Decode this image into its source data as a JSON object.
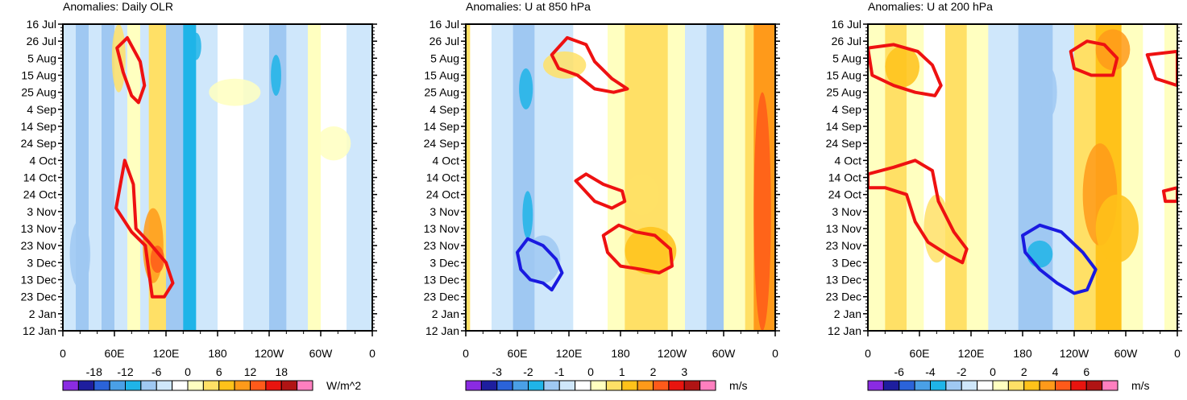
{
  "palette": [
    "#8a2be2",
    "#1e1e9e",
    "#2b63d9",
    "#4aa0e6",
    "#1fb4e8",
    "#9fc8f2",
    "#cfe7fb",
    "#ffffff",
    "#ffffc0",
    "#ffe066",
    "#ffc21a",
    "#ff9a1a",
    "#ff5a1a",
    "#e8140f",
    "#b01414",
    "#ff7fbf"
  ],
  "contour_colors": {
    "positive": "#ee1111",
    "negative": "#1a1ae0"
  },
  "chart_data": [
    {
      "type": "heatmap",
      "title": "Anomalies: Daily OLR",
      "units": "W/m^2",
      "colorbar_labels": [
        "-18",
        "-12",
        "-6",
        "0",
        "6",
        "12",
        "18"
      ],
      "x_ticks": [
        "0",
        "60E",
        "120E",
        "180",
        "120W",
        "60W",
        "0"
      ],
      "y_ticks": [
        "16 Jul",
        "26 Jul",
        "5 Aug",
        "15 Aug",
        "25 Aug",
        "4 Sep",
        "14 Sep",
        "24 Sep",
        "4 Oct",
        "14 Oct",
        "24 Oct",
        "3 Nov",
        "13 Nov",
        "23 Nov",
        "3 Dec",
        "13 Dec",
        "23 Dec",
        "2 Jan",
        "12 Jan"
      ],
      "xlim": [
        0,
        360
      ],
      "bands": [
        {
          "lon0": 0,
          "lon1": 15,
          "level": 6
        },
        {
          "lon0": 15,
          "lon1": 30,
          "level": 5
        },
        {
          "lon0": 30,
          "lon1": 45,
          "level": 6
        },
        {
          "lon0": 45,
          "lon1": 60,
          "level": 5
        },
        {
          "lon0": 60,
          "lon1": 75,
          "level": 6
        },
        {
          "lon0": 75,
          "lon1": 90,
          "level": 8
        },
        {
          "lon0": 90,
          "lon1": 100,
          "level": 6
        },
        {
          "lon0": 100,
          "lon1": 120,
          "level": 9
        },
        {
          "lon0": 120,
          "lon1": 140,
          "level": 5
        },
        {
          "lon0": 140,
          "lon1": 155,
          "level": 4
        },
        {
          "lon0": 155,
          "lon1": 180,
          "level": 6
        },
        {
          "lon0": 180,
          "lon1": 210,
          "level": 7
        },
        {
          "lon0": 210,
          "lon1": 240,
          "level": 6
        },
        {
          "lon0": 240,
          "lon1": 260,
          "level": 5
        },
        {
          "lon0": 260,
          "lon1": 285,
          "level": 6
        },
        {
          "lon0": 285,
          "lon1": 300,
          "level": 8
        },
        {
          "lon0": 300,
          "lon1": 330,
          "level": 7
        },
        {
          "lon0": 330,
          "lon1": 360,
          "level": 6
        }
      ],
      "patches": [
        {
          "lon": 105,
          "day": 130,
          "rlon": 12,
          "rday": 22,
          "level": 11
        },
        {
          "lon": 110,
          "day": 138,
          "rlon": 8,
          "rday": 8,
          "level": 12
        },
        {
          "lon": 65,
          "day": 20,
          "rlon": 8,
          "rday": 20,
          "level": 9
        },
        {
          "lon": 155,
          "day": 13,
          "rlon": 6,
          "rday": 8,
          "level": 4
        },
        {
          "lon": 248,
          "day": 30,
          "rlon": 6,
          "rday": 12,
          "level": 4
        },
        {
          "lon": 20,
          "day": 135,
          "rlon": 12,
          "rday": 20,
          "level": 5
        },
        {
          "lon": 200,
          "day": 40,
          "rlon": 30,
          "rday": 8,
          "level": 8
        },
        {
          "lon": 315,
          "day": 70,
          "rlon": 20,
          "rday": 10,
          "level": 8
        }
      ],
      "contours": [
        {
          "sign": "positive",
          "points": [
            [
              63,
              14
            ],
            [
              75,
              8
            ],
            [
              90,
              22
            ],
            [
              95,
              36
            ],
            [
              88,
              46
            ],
            [
              80,
              42
            ],
            [
              70,
              28
            ]
          ]
        },
        {
          "sign": "positive",
          "points": [
            [
              62,
              108
            ],
            [
              72,
              80
            ],
            [
              82,
              94
            ],
            [
              85,
              120
            ],
            [
              100,
              128
            ],
            [
              120,
              140
            ],
            [
              128,
              152
            ],
            [
              118,
              160
            ],
            [
              104,
              160
            ],
            [
              96,
              130
            ],
            [
              80,
              122
            ]
          ]
        }
      ]
    },
    {
      "type": "heatmap",
      "title": "Anomalies: U at 850 hPa",
      "units": "m/s",
      "colorbar_labels": [
        "-3",
        "-2",
        "-1",
        "0",
        "1",
        "2",
        "3"
      ],
      "x_ticks": [
        "0",
        "60E",
        "120E",
        "180",
        "120W",
        "60W",
        "0"
      ],
      "y_ticks": [
        "16 Jul",
        "26 Jul",
        "5 Aug",
        "15 Aug",
        "25 Aug",
        "4 Sep",
        "14 Sep",
        "24 Sep",
        "4 Oct",
        "14 Oct",
        "24 Oct",
        "3 Nov",
        "13 Nov",
        "23 Nov",
        "3 Dec",
        "13 Dec",
        "23 Dec",
        "2 Jan",
        "12 Jan"
      ],
      "xlim": [
        0,
        360
      ],
      "bands": [
        {
          "lon0": 0,
          "lon1": 5,
          "level": 9
        },
        {
          "lon0": 5,
          "lon1": 30,
          "level": 7
        },
        {
          "lon0": 30,
          "lon1": 55,
          "level": 6
        },
        {
          "lon0": 55,
          "lon1": 80,
          "level": 5
        },
        {
          "lon0": 80,
          "lon1": 100,
          "level": 6
        },
        {
          "lon0": 100,
          "lon1": 125,
          "level": 6
        },
        {
          "lon0": 125,
          "lon1": 165,
          "level": 7
        },
        {
          "lon0": 165,
          "lon1": 185,
          "level": 8
        },
        {
          "lon0": 185,
          "lon1": 235,
          "level": 9
        },
        {
          "lon0": 235,
          "lon1": 255,
          "level": 8
        },
        {
          "lon0": 255,
          "lon1": 280,
          "level": 6
        },
        {
          "lon0": 280,
          "lon1": 300,
          "level": 5
        },
        {
          "lon0": 300,
          "lon1": 325,
          "level": 8
        },
        {
          "lon0": 325,
          "lon1": 335,
          "level": 9
        },
        {
          "lon0": 335,
          "lon1": 360,
          "level": 11
        }
      ],
      "patches": [
        {
          "lon": 215,
          "day": 133,
          "rlon": 30,
          "rday": 14,
          "level": 10
        },
        {
          "lon": 205,
          "day": 100,
          "rlon": 20,
          "rday": 12,
          "level": 9
        },
        {
          "lon": 115,
          "day": 24,
          "rlon": 25,
          "rday": 8,
          "level": 9
        },
        {
          "lon": 70,
          "day": 38,
          "rlon": 8,
          "rday": 12,
          "level": 4
        },
        {
          "lon": 72,
          "day": 112,
          "rlon": 6,
          "rday": 14,
          "level": 4
        },
        {
          "lon": 90,
          "day": 138,
          "rlon": 20,
          "rday": 14,
          "level": 5
        },
        {
          "lon": 345,
          "day": 110,
          "rlon": 10,
          "rday": 70,
          "level": 12
        }
      ],
      "contours": [
        {
          "sign": "positive",
          "points": [
            [
              100,
              18
            ],
            [
              118,
              8
            ],
            [
              140,
              12
            ],
            [
              150,
              22
            ],
            [
              170,
              32
            ],
            [
              188,
              38
            ],
            [
              172,
              40
            ],
            [
              150,
              38
            ],
            [
              130,
              30
            ],
            [
              108,
              26
            ]
          ]
        },
        {
          "sign": "positive",
          "points": [
            [
              128,
              92
            ],
            [
              140,
              88
            ],
            [
              160,
              94
            ],
            [
              182,
              98
            ],
            [
              185,
              104
            ],
            [
              170,
              108
            ],
            [
              150,
              104
            ]
          ]
        },
        {
          "sign": "positive",
          "points": [
            [
              160,
              124
            ],
            [
              178,
              118
            ],
            [
              198,
              122
            ],
            [
              220,
              124
            ],
            [
              238,
              132
            ],
            [
              240,
              142
            ],
            [
              225,
              146
            ],
            [
              205,
              144
            ],
            [
              180,
              142
            ],
            [
              165,
              134
            ]
          ]
        },
        {
          "sign": "negative",
          "points": [
            [
              60,
              134
            ],
            [
              72,
              126
            ],
            [
              90,
              130
            ],
            [
              105,
              138
            ],
            [
              112,
              146
            ],
            [
              100,
              156
            ],
            [
              90,
              152
            ],
            [
              75,
              150
            ],
            [
              64,
              144
            ]
          ]
        }
      ]
    },
    {
      "type": "heatmap",
      "title": "Anomalies: U at 200 hPa",
      "units": "m/s",
      "colorbar_labels": [
        "-6",
        "-4",
        "-2",
        "0",
        "2",
        "4",
        "6"
      ],
      "x_ticks": [
        "0",
        "60E",
        "120E",
        "180",
        "120W",
        "60W",
        "0"
      ],
      "y_ticks": [
        "16 Jul",
        "26 Jul",
        "5 Aug",
        "15 Aug",
        "25 Aug",
        "4 Sep",
        "14 Sep",
        "24 Sep",
        "4 Oct",
        "14 Oct",
        "24 Oct",
        "3 Nov",
        "13 Nov",
        "23 Nov",
        "3 Dec",
        "13 Dec",
        "23 Dec",
        "2 Jan",
        "12 Jan"
      ],
      "xlim": [
        0,
        360
      ],
      "bands": [
        {
          "lon0": 0,
          "lon1": 20,
          "level": 8
        },
        {
          "lon0": 20,
          "lon1": 45,
          "level": 9
        },
        {
          "lon0": 45,
          "lon1": 65,
          "level": 8
        },
        {
          "lon0": 65,
          "lon1": 90,
          "level": 7
        },
        {
          "lon0": 90,
          "lon1": 115,
          "level": 9
        },
        {
          "lon0": 115,
          "lon1": 140,
          "level": 8
        },
        {
          "lon0": 140,
          "lon1": 175,
          "level": 6
        },
        {
          "lon0": 175,
          "lon1": 215,
          "level": 5
        },
        {
          "lon0": 215,
          "lon1": 240,
          "level": 6
        },
        {
          "lon0": 240,
          "lon1": 265,
          "level": 9
        },
        {
          "lon0": 265,
          "lon1": 295,
          "level": 10
        },
        {
          "lon0": 295,
          "lon1": 320,
          "level": 8
        },
        {
          "lon0": 320,
          "lon1": 345,
          "level": 7
        },
        {
          "lon0": 345,
          "lon1": 360,
          "level": 8
        }
      ],
      "patches": [
        {
          "lon": 270,
          "day": 100,
          "rlon": 20,
          "rday": 30,
          "level": 11
        },
        {
          "lon": 285,
          "day": 15,
          "rlon": 20,
          "rday": 12,
          "level": 11
        },
        {
          "lon": 290,
          "day": 120,
          "rlon": 25,
          "rday": 20,
          "level": 10
        },
        {
          "lon": 40,
          "day": 25,
          "rlon": 20,
          "rday": 12,
          "level": 10
        },
        {
          "lon": 200,
          "day": 135,
          "rlon": 15,
          "rday": 8,
          "level": 4
        },
        {
          "lon": 210,
          "day": 40,
          "rlon": 10,
          "rday": 15,
          "level": 5
        },
        {
          "lon": 80,
          "day": 120,
          "rlon": 15,
          "rday": 20,
          "level": 9
        }
      ],
      "contours": [
        {
          "sign": "positive",
          "points": [
            [
              0,
              14
            ],
            [
              30,
              12
            ],
            [
              58,
              16
            ],
            [
              75,
              24
            ],
            [
              85,
              36
            ],
            [
              78,
              42
            ],
            [
              55,
              40
            ],
            [
              30,
              36
            ],
            [
              5,
              30
            ]
          ]
        },
        {
          "sign": "positive",
          "points": [
            [
              0,
              88
            ],
            [
              30,
              84
            ],
            [
              55,
              80
            ],
            [
              75,
              86
            ],
            [
              82,
              104
            ],
            [
              100,
              122
            ],
            [
              115,
              132
            ],
            [
              110,
              140
            ],
            [
              95,
              136
            ],
            [
              70,
              128
            ],
            [
              55,
              116
            ],
            [
              45,
              100
            ],
            [
              20,
              96
            ],
            [
              0,
              96
            ]
          ]
        },
        {
          "sign": "positive",
          "points": [
            [
              236,
              16
            ],
            [
              255,
              10
            ],
            [
              275,
              12
            ],
            [
              290,
              20
            ],
            [
              285,
              30
            ],
            [
              260,
              30
            ],
            [
              240,
              26
            ]
          ]
        },
        {
          "sign": "positive",
          "points": [
            [
              325,
              18
            ],
            [
              360,
              16
            ],
            [
              360,
              36
            ],
            [
              335,
              32
            ]
          ]
        },
        {
          "sign": "positive",
          "points": [
            [
              344,
              98
            ],
            [
              360,
              96
            ],
            [
              360,
              104
            ],
            [
              346,
              104
            ]
          ]
        },
        {
          "sign": "negative",
          "points": [
            [
              180,
              124
            ],
            [
              200,
              118
            ],
            [
              225,
              122
            ],
            [
              250,
              134
            ],
            [
              265,
              144
            ],
            [
              255,
              156
            ],
            [
              240,
              158
            ],
            [
              220,
              152
            ],
            [
              200,
              144
            ],
            [
              183,
              134
            ]
          ]
        }
      ]
    }
  ]
}
